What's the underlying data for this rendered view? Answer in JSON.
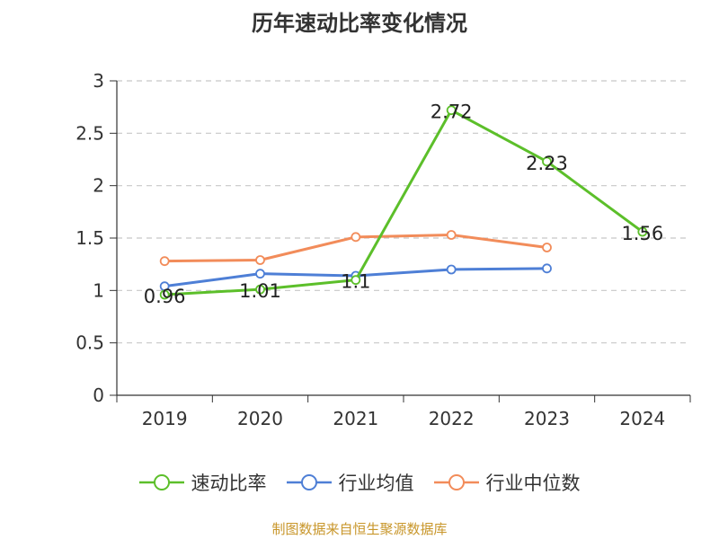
{
  "chart_data": {
    "type": "line",
    "title": "历年速动比率变化情况",
    "categories": [
      "2019",
      "2020",
      "2021",
      "2022",
      "2023",
      "2024"
    ],
    "ylim": [
      0,
      3
    ],
    "yticks": [
      0,
      0.5,
      1,
      1.5,
      2,
      2.5,
      3
    ],
    "grid": true,
    "legend_position": "bottom",
    "series": [
      {
        "name": "速动比率",
        "color": "#5cbf2a",
        "values": [
          0.96,
          1.01,
          1.1,
          2.72,
          2.23,
          1.56
        ],
        "labels": [
          "0.96",
          "1.01",
          "1.1",
          "2.72",
          "2.23",
          "1.56"
        ]
      },
      {
        "name": "行业均值",
        "color": "#4e7fd6",
        "values": [
          1.04,
          1.16,
          1.14,
          1.2,
          1.21,
          null
        ]
      },
      {
        "name": "行业中位数",
        "color": "#f28c5a",
        "values": [
          1.28,
          1.29,
          1.51,
          1.53,
          1.41,
          null
        ]
      }
    ]
  },
  "source": "制图数据来自恒生聚源数据库"
}
